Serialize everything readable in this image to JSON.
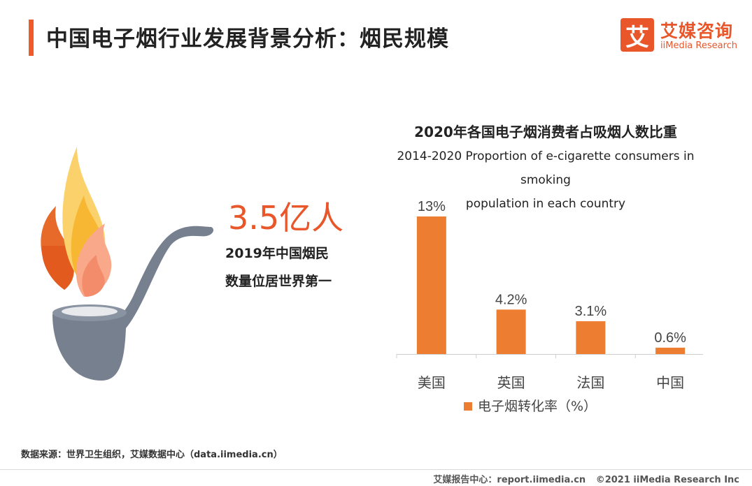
{
  "page": {
    "title": "中国电子烟行业发展背景分析：烟民规模"
  },
  "logo": {
    "mark": "艾",
    "name_cn": "艾媒咨询",
    "name_en": "iiMedia Research"
  },
  "highlight": {
    "number": "3.5亿人",
    "line1": "2019年中国烟民",
    "line2": "数量位居世界第一"
  },
  "chart_data": {
    "type": "bar",
    "title": "2020年各国电子烟消费者占吸烟人数比重",
    "subtitle_line1": "2014-2020 Proportion of e-cigarette consumers in smoking",
    "subtitle_line2": "population in each country",
    "categories": [
      "美国",
      "英国",
      "法国",
      "中国"
    ],
    "series": [
      {
        "name": "电子烟转化率（%）",
        "values": [
          13,
          4.2,
          3.1,
          0.6
        ],
        "labels": [
          "13%",
          "4.2%",
          "3.1%",
          "0.6%"
        ],
        "color": "#ed7d31"
      }
    ],
    "ylim": [
      0,
      13
    ],
    "grid": false,
    "legend_position": "bottom"
  },
  "source": "数据来源：世界卫生组织，艾媒数据中心（data.iimedia.cn）",
  "footer": {
    "report_center": "艾媒报告中心：report.iimedia.cn",
    "copyright": "©2021  iiMedia Research  Inc"
  },
  "colors": {
    "accent": "#e8562a",
    "bar": "#ed7d31",
    "pipe": "#77808f"
  }
}
